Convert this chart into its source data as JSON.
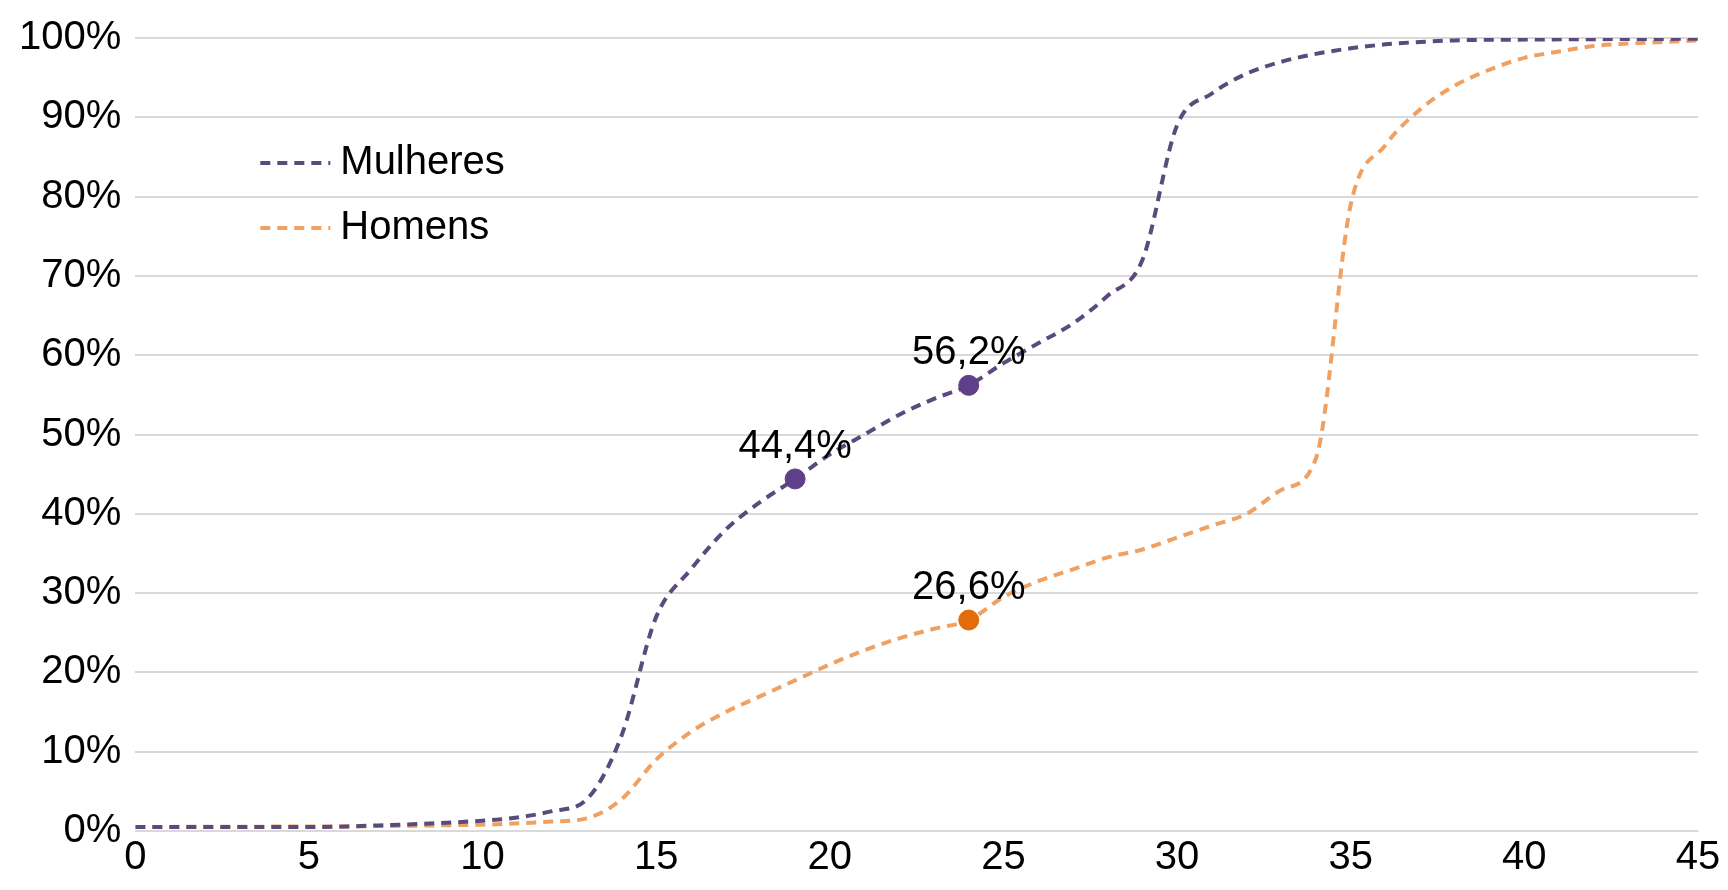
{
  "chart_data": {
    "type": "line",
    "xlim": [
      0,
      45
    ],
    "xticks": [
      0,
      5,
      10,
      15,
      20,
      25,
      30,
      35,
      40,
      45
    ],
    "ylim": [
      0,
      100
    ],
    "yticks": [
      {
        "value": 0,
        "label": "0%"
      },
      {
        "value": 10,
        "label": "10%"
      },
      {
        "value": 20,
        "label": "20%"
      },
      {
        "value": 30,
        "label": "30%"
      },
      {
        "value": 40,
        "label": "40%"
      },
      {
        "value": 50,
        "label": "50%"
      },
      {
        "value": 60,
        "label": "60%"
      },
      {
        "value": 70,
        "label": "70%"
      },
      {
        "value": 80,
        "label": "80%"
      },
      {
        "value": 90,
        "label": "90%"
      },
      {
        "value": 100,
        "label": "100%"
      }
    ],
    "grid": "y",
    "legend": "top left",
    "line_style": "dashed",
    "series": [
      {
        "name": "Mulheres",
        "color": "#5b4a7e",
        "x": [
          0,
          5,
          7,
          10,
          11,
          12,
          13,
          14,
          15,
          16,
          17,
          18,
          19,
          20,
          21,
          22,
          23,
          24,
          25,
          26,
          27,
          28,
          29,
          30,
          31,
          32,
          33,
          34,
          35,
          36,
          37,
          38,
          40,
          45
        ],
        "values": [
          0.5,
          0.5,
          0.7,
          1.3,
          1.7,
          2.5,
          4,
          12,
          27,
          33,
          38,
          41.5,
          44.4,
          47.5,
          50,
          52.5,
          54.5,
          56.2,
          59,
          61.5,
          64,
          67.5,
          72,
          89,
          93,
          95.5,
          97,
          98,
          98.7,
          99.2,
          99.5,
          99.7,
          99.8,
          99.9
        ]
      },
      {
        "name": "Homens",
        "color": "#f0a060",
        "x": [
          0,
          10,
          12,
          13,
          14,
          15,
          16,
          17,
          18,
          19,
          20,
          21,
          22,
          23,
          24,
          25,
          26,
          27,
          28,
          29,
          30,
          31,
          32,
          33,
          34,
          35,
          36,
          37,
          38,
          39,
          40,
          41,
          42,
          43,
          44,
          45
        ],
        "values": [
          0.5,
          0.8,
          1.2,
          1.6,
          4,
          9,
          12.5,
          15,
          17,
          19,
          21,
          22.8,
          24.3,
          25.5,
          26.6,
          29.5,
          31.5,
          33,
          34.5,
          35.5,
          37,
          38.5,
          40,
          43,
          47,
          79,
          86.5,
          91,
          94,
          96,
          97.5,
          98.3,
          99,
          99.3,
          99.5,
          99.7
        ]
      },
      {
        "type": "scatter",
        "color": "#5f3f8a",
        "x": [
          19,
          24
        ],
        "values": [
          44.4,
          56.2
        ],
        "value_labels": [
          "44,4%",
          "56,2%"
        ]
      },
      {
        "type": "scatter",
        "color": "#e36c09",
        "x": [
          24
        ],
        "values": [
          26.6
        ],
        "value_labels": [
          "26,6%"
        ]
      }
    ]
  }
}
